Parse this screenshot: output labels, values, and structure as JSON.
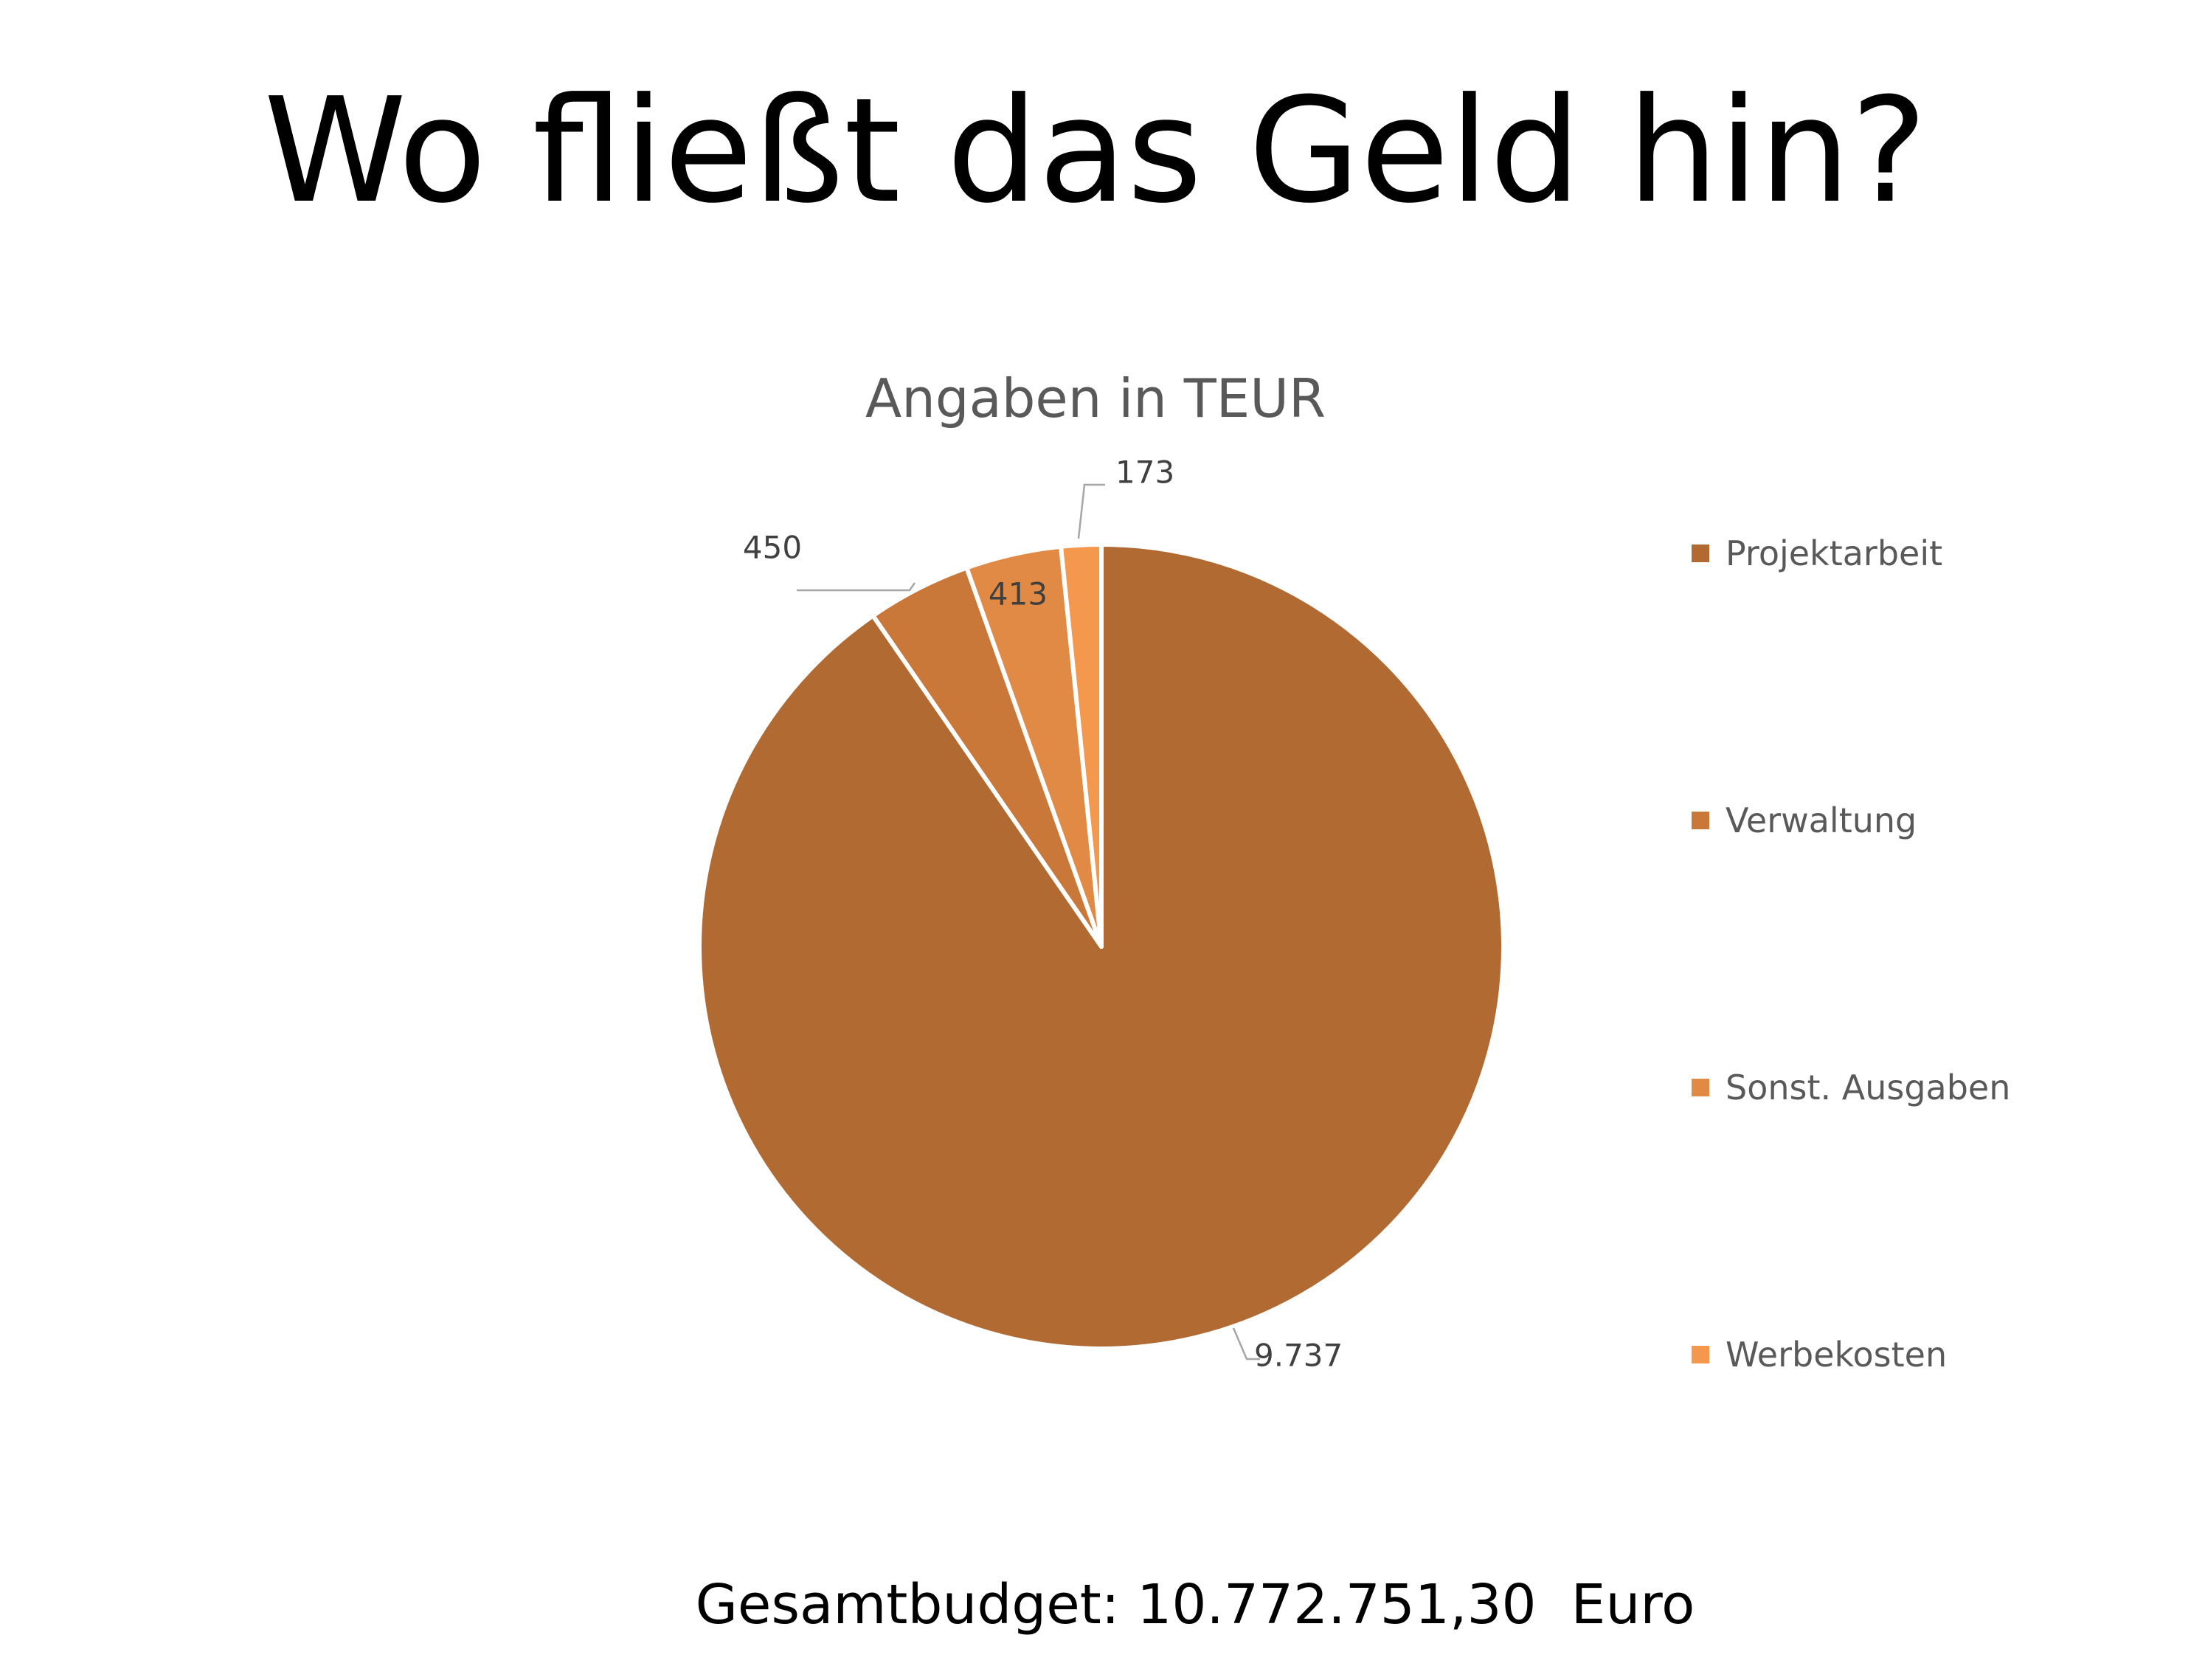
{
  "slide": {
    "title": "Wo fließt das Geld hin?",
    "footer": "Gesamtbudget: 10.772.751,30  Euro"
  },
  "chart_data": {
    "type": "pie",
    "title": "Angaben in TEUR",
    "categories": [
      "Projektarbeit",
      "Verwaltung",
      "Sonst. Ausgaben",
      "Werbekosten"
    ],
    "values": [
      9737,
      450,
      413,
      173
    ],
    "data_labels": [
      "9.737",
      "450",
      "413",
      "173"
    ],
    "colors": [
      "#B06A32",
      "#C97839",
      "#E08A45",
      "#F4984E"
    ],
    "legend_placement": "right",
    "start_angle": "12 o'clock",
    "direction": "clockwise"
  }
}
